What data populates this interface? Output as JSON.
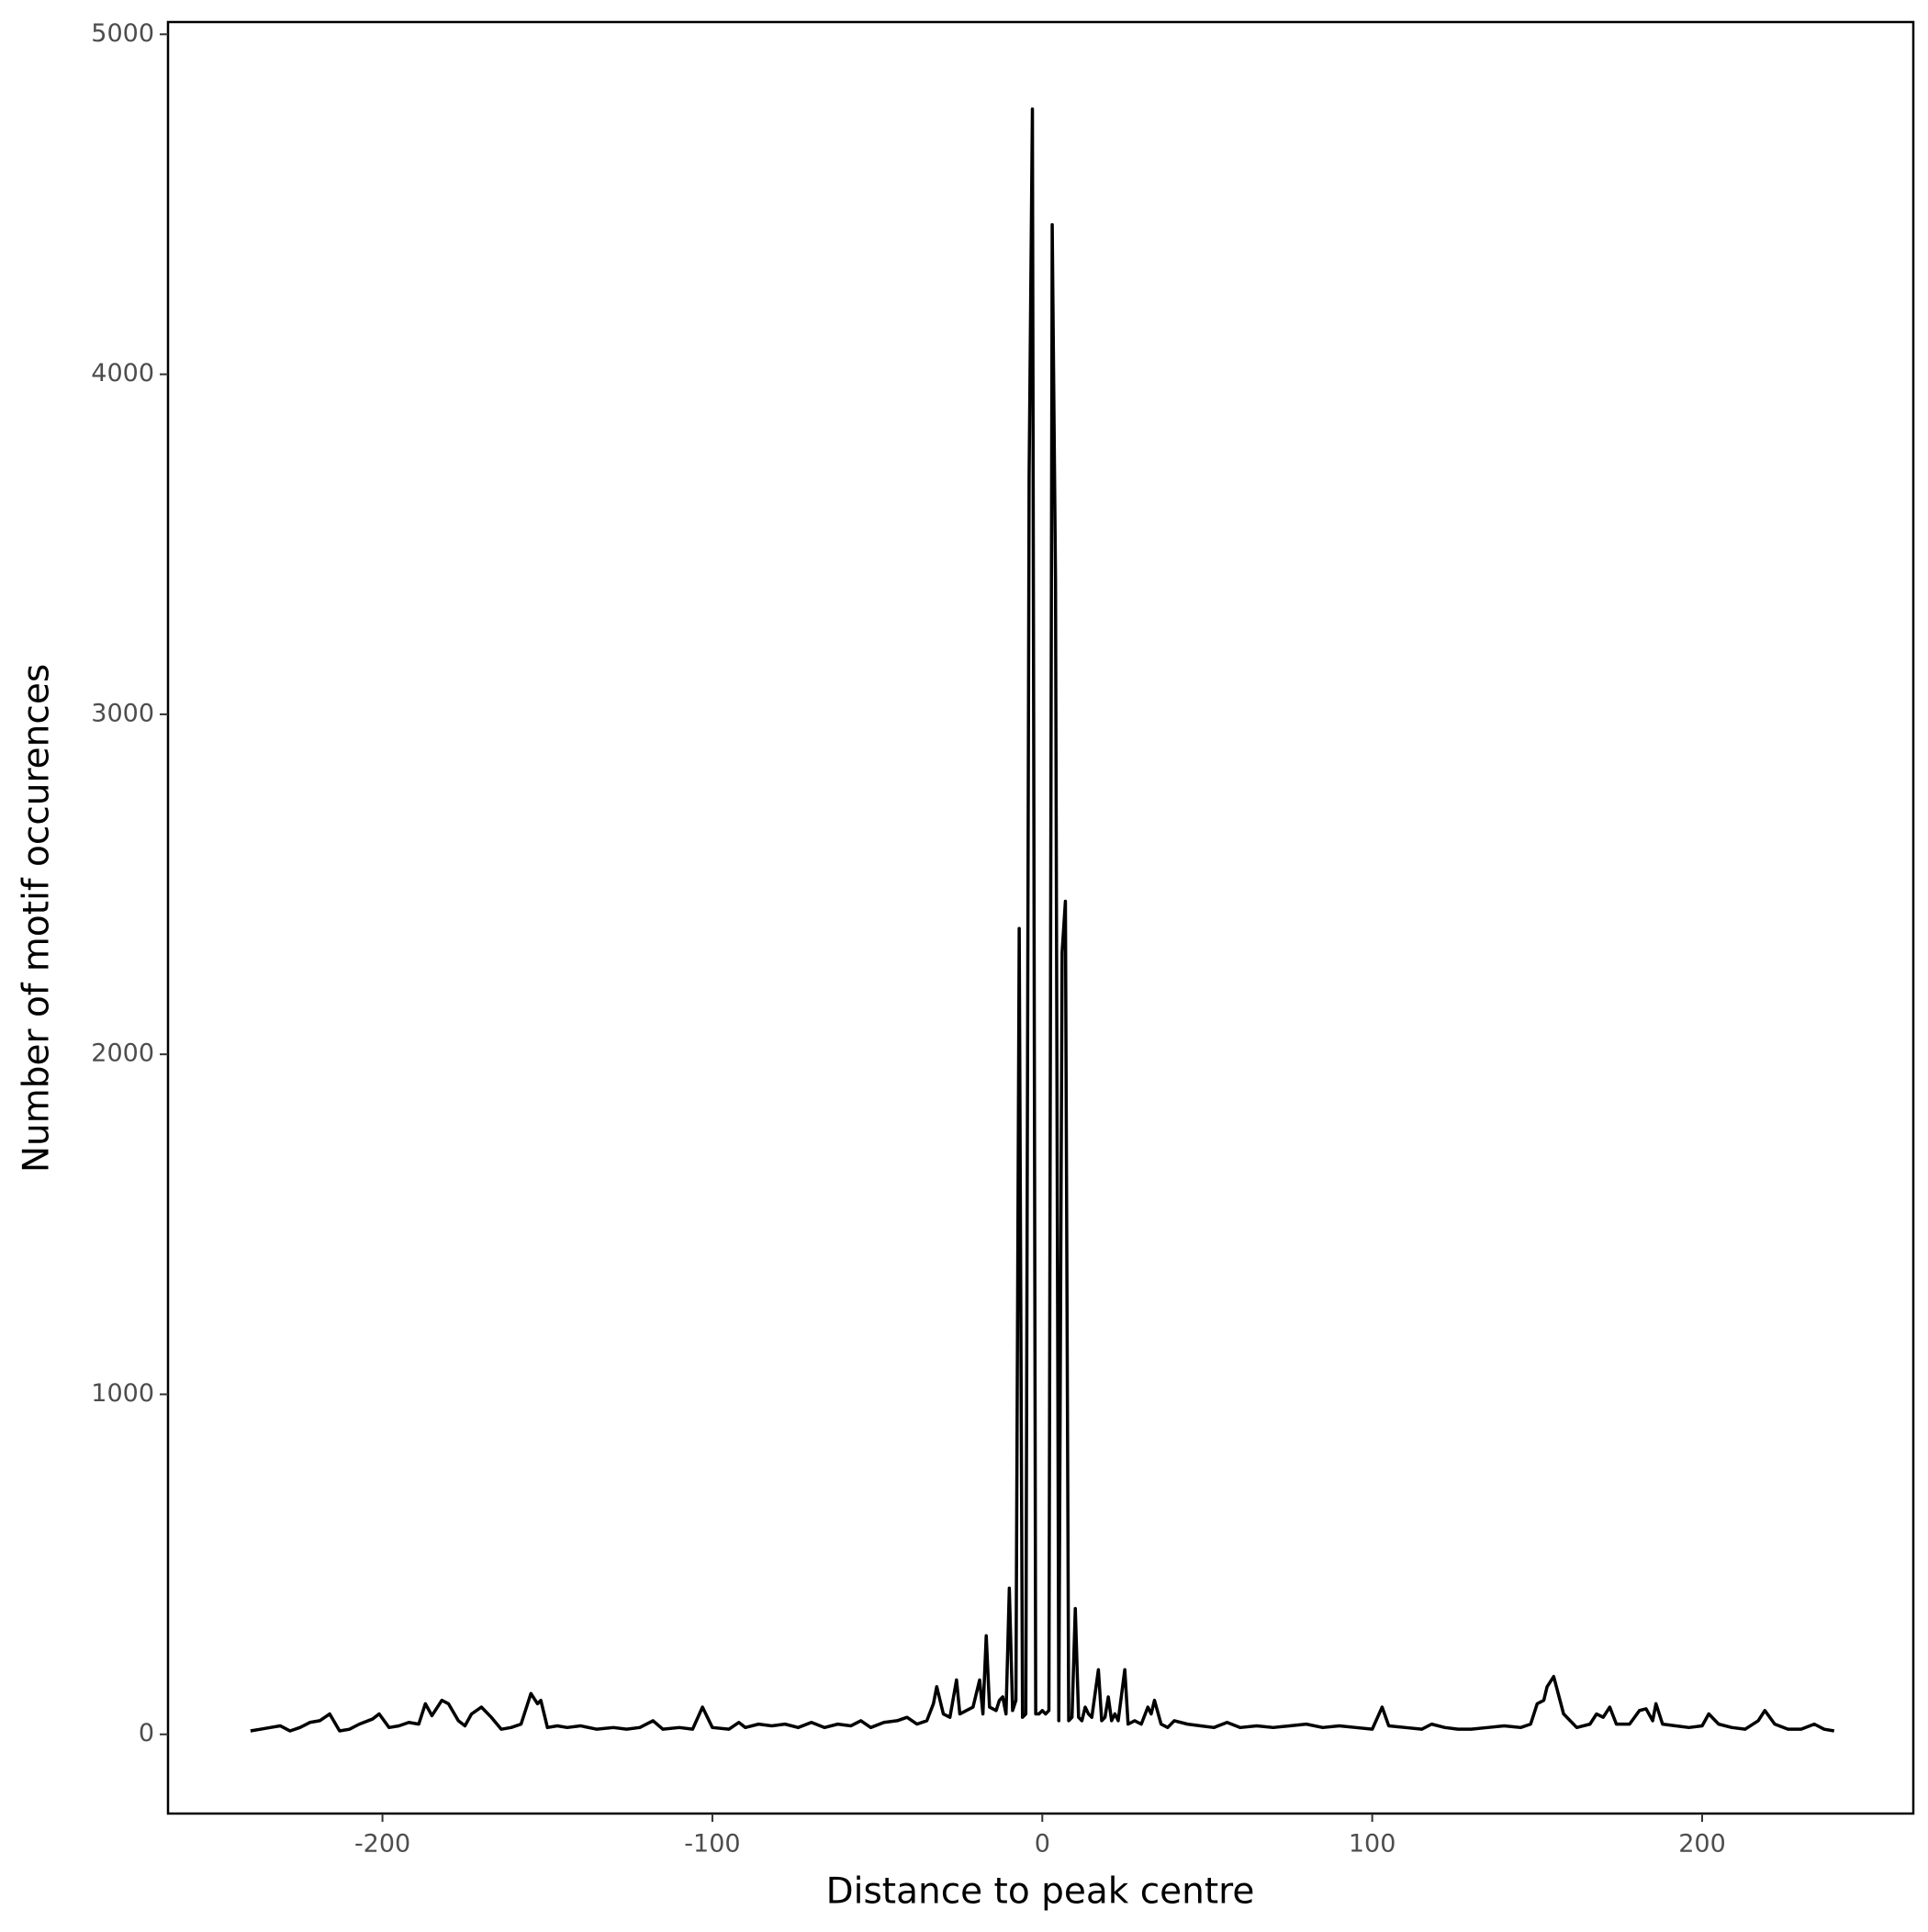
{
  "chart_data": {
    "type": "line",
    "x_label": "Distance to peak centre",
    "y_label": "Number of motif occurences",
    "color": "#000000",
    "xlim": [
      -265,
      264
    ],
    "xticks": [
      -200,
      -100,
      0,
      100,
      200
    ],
    "ylim": [
      -233,
      5036
    ],
    "yticks": [
      0,
      1000,
      2000,
      3000,
      4000,
      5000
    ],
    "border": true,
    "x": [
      -240,
      -237,
      -234,
      -231,
      -228,
      -225,
      -222,
      -219,
      -216,
      -213,
      -210,
      -207,
      -203,
      -201,
      -198,
      -195,
      -192,
      -189,
      -187,
      -185,
      -182,
      -180,
      -177,
      -175,
      -173,
      -170,
      -167,
      -164,
      -161,
      -158,
      -155,
      -153,
      -152,
      -150,
      -147,
      -144,
      -140,
      -135,
      -130,
      -126,
      -122,
      -118,
      -115,
      -110,
      -106,
      -103,
      -100,
      -95,
      -92,
      -90,
      -86,
      -82,
      -78,
      -74,
      -70,
      -66,
      -62,
      -58,
      -55,
      -52,
      -48,
      -44,
      -41,
      -38,
      -35,
      -33,
      -32,
      -30,
      -28,
      -26,
      -25,
      -23,
      -21,
      -19,
      -18,
      -17,
      -16,
      -14,
      -13,
      -12,
      -11,
      -10,
      -9,
      -8,
      -7,
      -6,
      -5,
      -4,
      -3,
      -2,
      -1,
      0,
      1,
      2,
      3,
      4,
      5,
      6,
      7,
      8,
      9,
      10,
      11,
      12,
      13,
      14,
      15,
      17,
      18,
      19,
      20,
      21,
      22,
      23,
      25,
      26,
      28,
      30,
      32,
      33,
      34,
      36,
      38,
      40,
      44,
      48,
      52,
      56,
      60,
      65,
      70,
      75,
      80,
      85,
      90,
      95,
      100,
      103,
      105,
      110,
      115,
      118,
      122,
      126,
      130,
      135,
      140,
      145,
      148,
      150,
      152,
      153,
      155,
      158,
      162,
      166,
      168,
      170,
      172,
      174,
      178,
      181,
      183,
      185,
      186,
      188,
      192,
      196,
      200,
      202,
      205,
      209,
      213,
      217,
      219,
      222,
      226,
      230,
      234,
      237,
      240
    ],
    "values": [
      10,
      15,
      20,
      25,
      10,
      20,
      35,
      40,
      60,
      10,
      15,
      30,
      45,
      60,
      20,
      25,
      35,
      30,
      90,
      55,
      100,
      90,
      40,
      25,
      60,
      80,
      50,
      15,
      20,
      30,
      120,
      90,
      100,
      20,
      25,
      20,
      25,
      15,
      20,
      15,
      20,
      40,
      15,
      20,
      15,
      80,
      20,
      15,
      35,
      20,
      30,
      25,
      30,
      20,
      35,
      20,
      30,
      25,
      40,
      20,
      35,
      40,
      50,
      30,
      40,
      90,
      140,
      60,
      50,
      160,
      60,
      70,
      80,
      160,
      60,
      290,
      80,
      70,
      100,
      110,
      60,
      430,
      70,
      100,
      2370,
      50,
      60,
      3700,
      4780,
      60,
      60,
      70,
      60,
      70,
      4440,
      3400,
      40,
      2300,
      2450,
      40,
      50,
      370,
      50,
      40,
      80,
      60,
      50,
      190,
      40,
      50,
      110,
      40,
      60,
      40,
      190,
      30,
      40,
      30,
      80,
      60,
      100,
      30,
      20,
      40,
      30,
      25,
      20,
      35,
      20,
      25,
      20,
      25,
      30,
      20,
      25,
      20,
      15,
      80,
      25,
      20,
      15,
      30,
      20,
      15,
      15,
      20,
      25,
      20,
      30,
      90,
      100,
      140,
      170,
      60,
      20,
      30,
      60,
      50,
      80,
      30,
      30,
      70,
      75,
      40,
      90,
      30,
      25,
      20,
      25,
      60,
      30,
      20,
      15,
      40,
      70,
      30,
      15,
      15,
      30,
      15,
      10
    ]
  }
}
